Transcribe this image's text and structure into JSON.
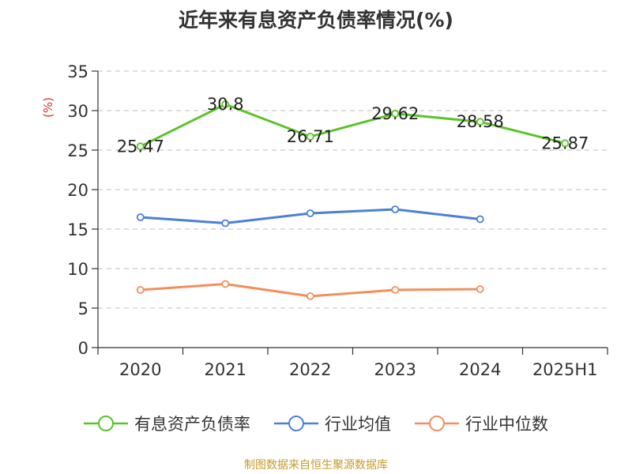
{
  "chart_data": {
    "type": "line",
    "title": "近年来有息资产负债率情况(%)",
    "ylabel": "(%)",
    "categories": [
      "2020",
      "2021",
      "2022",
      "2023",
      "2024",
      "2025H1"
    ],
    "ylim": [
      0,
      35
    ],
    "yticks": [
      0,
      5,
      10,
      15,
      20,
      25,
      30,
      35
    ],
    "grid": true,
    "legend_position": "bottom",
    "series": [
      {
        "name": "有息资产负债率",
        "color": "#5ac32a",
        "values": [
          25.47,
          30.8,
          26.71,
          29.62,
          28.58,
          25.87
        ],
        "labels": [
          "25.47",
          "30.8",
          "26.71",
          "29.62",
          "28.58",
          "25.87"
        ]
      },
      {
        "name": "行业均值",
        "color": "#4b7fd8",
        "values": [
          16.5,
          15.75,
          17.0,
          17.5,
          16.25,
          null
        ]
      },
      {
        "name": "行业中位数",
        "color": "#f28f5c",
        "values": [
          7.3,
          8.05,
          6.5,
          7.3,
          7.4,
          null
        ]
      }
    ]
  },
  "source": "制图数据来自恒生聚源数据库"
}
